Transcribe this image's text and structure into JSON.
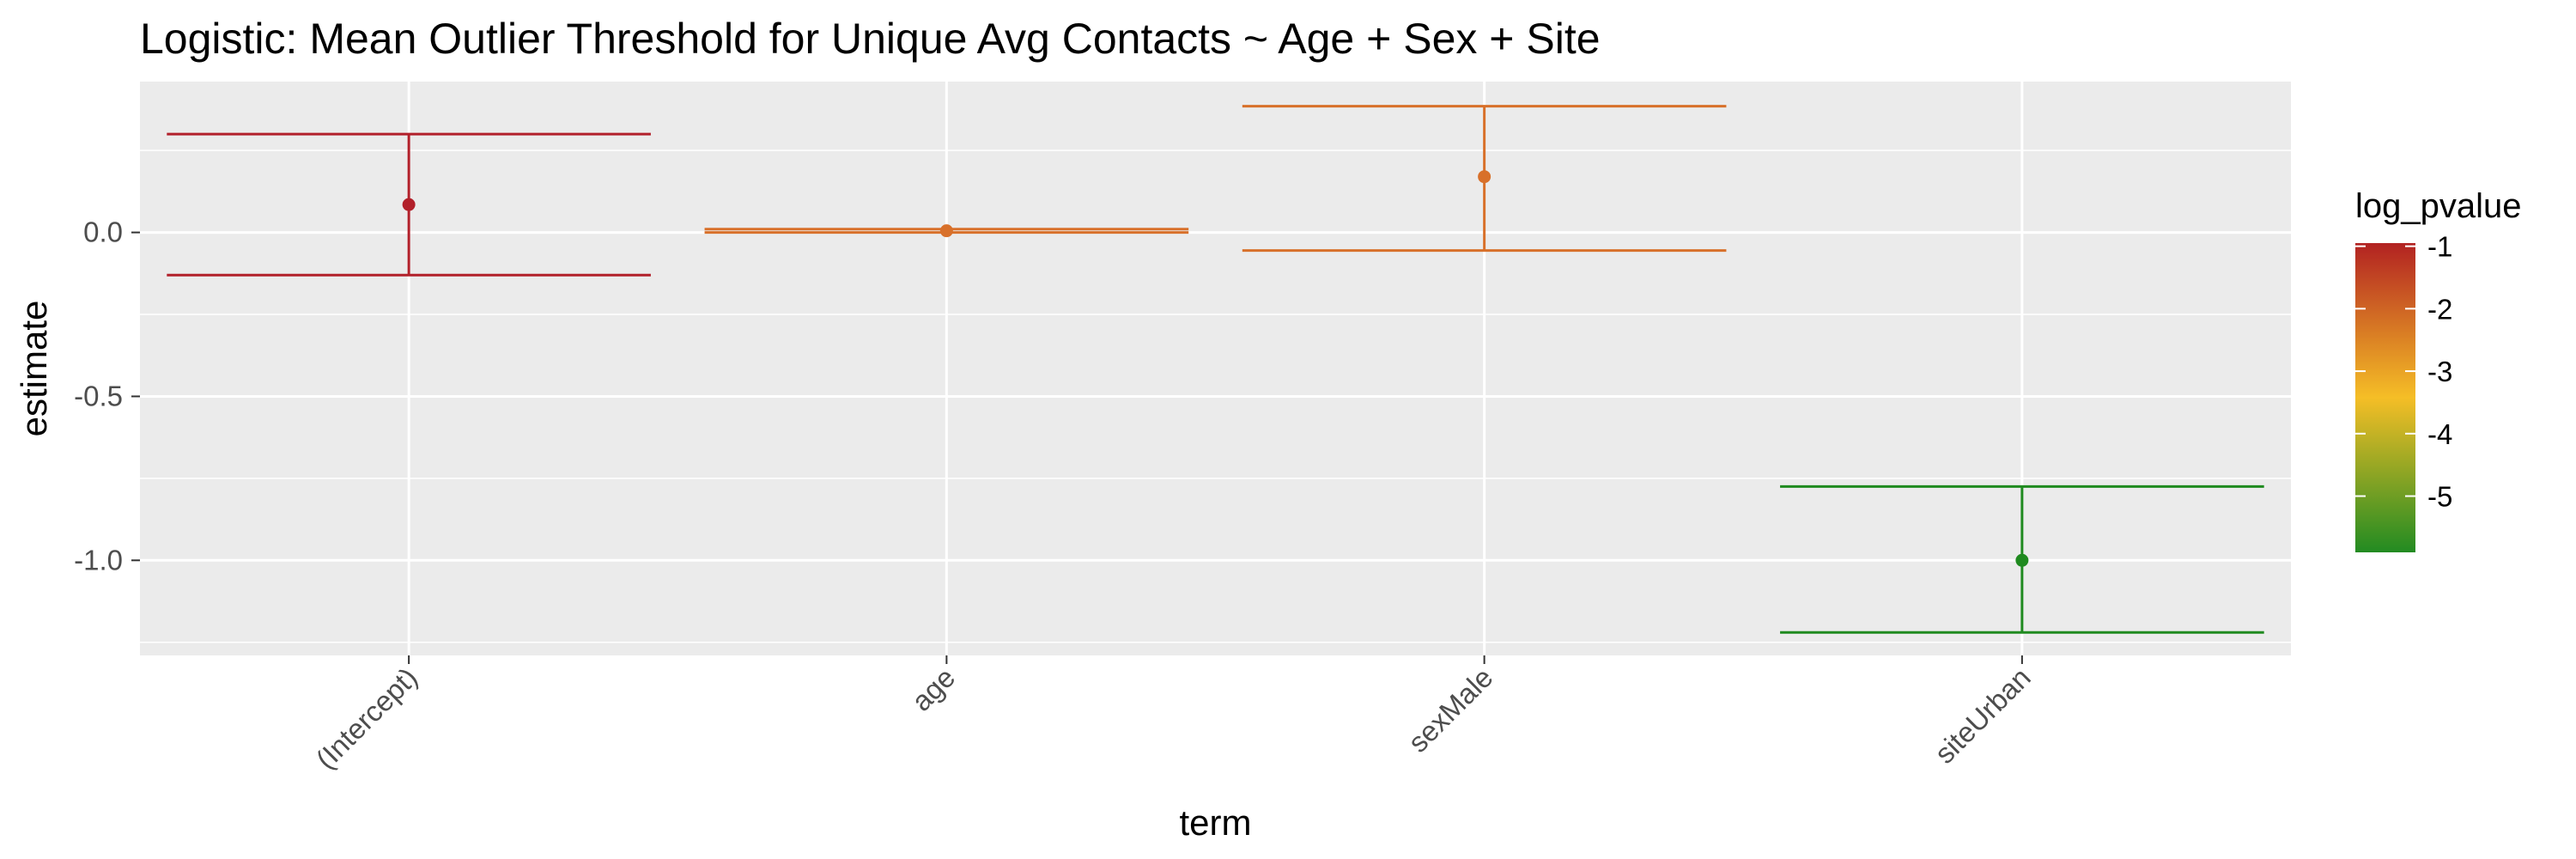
{
  "chart_data": {
    "type": "errorbar",
    "title": "Logistic: Mean Outlier Threshold for Unique Avg Contacts ~ Age + Sex + Site",
    "xlabel": "term",
    "ylabel": "estimate",
    "categories": [
      "(Intercept)",
      "age",
      "sexMale",
      "siteUrban"
    ],
    "estimates": [
      0.085,
      0.005,
      0.17,
      -1.0
    ],
    "ci_low": [
      -0.13,
      0.0,
      -0.055,
      -1.22
    ],
    "ci_high": [
      0.3,
      0.01,
      0.385,
      -0.775
    ],
    "log_pvalue": [
      -1.0,
      -2.0,
      -2.0,
      -5.9
    ],
    "colors": [
      "#b2202a",
      "#d8702a",
      "#d8702a",
      "#1f8a1f"
    ],
    "yticks": [
      0.0,
      -0.5,
      -1.0
    ],
    "ytick_labels": [
      "0.0",
      "-0.5",
      "-1.0"
    ],
    "ylim": [
      -1.29,
      0.46
    ],
    "grid": true,
    "legend": {
      "title": "log_pvalue",
      "position": "right",
      "ticks": [
        -1,
        -2,
        -3,
        -4,
        -5
      ],
      "tick_labels": [
        "-1",
        "-2",
        "-3",
        "-4",
        "-5"
      ],
      "range": [
        -5.9,
        -0.95
      ],
      "colors": [
        "#228b22",
        "#f5be26",
        "#b22222"
      ]
    }
  }
}
